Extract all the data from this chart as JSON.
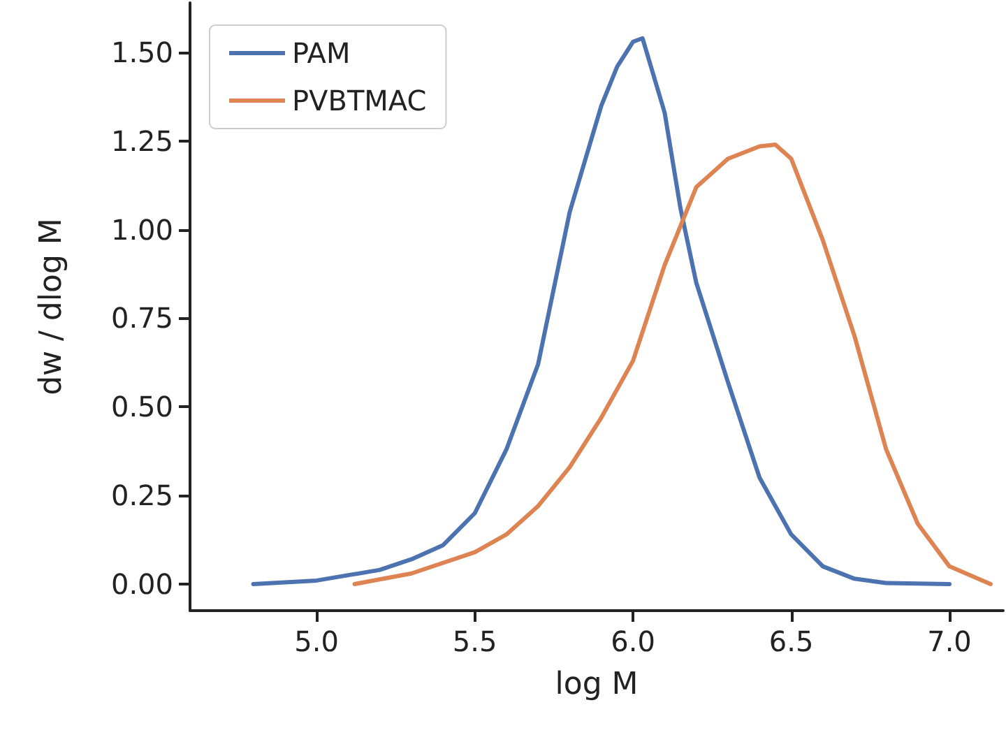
{
  "chart_data": {
    "type": "line",
    "xlabel": "log M",
    "ylabel": "dw / dlog M",
    "xlim": [
      4.6,
      7.17
    ],
    "ylim": [
      -0.075,
      1.64
    ],
    "xticks": [
      {
        "value": 5.0,
        "label": "5.0"
      },
      {
        "value": 5.5,
        "label": "5.5"
      },
      {
        "value": 6.0,
        "label": "6.0"
      },
      {
        "value": 6.5,
        "label": "6.5"
      },
      {
        "value": 7.0,
        "label": "7.0"
      }
    ],
    "yticks": [
      {
        "value": 0,
        "label": "0.00"
      },
      {
        "value": 0.25,
        "label": "0.25"
      },
      {
        "value": 0.5,
        "label": "0.50"
      },
      {
        "value": 0.75,
        "label": "0.75"
      },
      {
        "value": 1.0,
        "label": "1.00"
      },
      {
        "value": 1.25,
        "label": "1.25"
      },
      {
        "value": 1.5,
        "label": "1.50"
      }
    ],
    "grid": false,
    "legend": "top left",
    "marker": "none",
    "line_style": "solid",
    "series": [
      {
        "name": "PAM",
        "color": "#4c72b0",
        "x": [
          4.8,
          5.0,
          5.2,
          5.3,
          5.4,
          5.5,
          5.6,
          5.7,
          5.8,
          5.9,
          5.95,
          6.0,
          6.03,
          6.1,
          6.15,
          6.2,
          6.3,
          6.4,
          6.5,
          6.6,
          6.7,
          6.8,
          7.0
        ],
        "values": [
          0.0,
          0.01,
          0.04,
          0.07,
          0.11,
          0.2,
          0.38,
          0.62,
          1.05,
          1.35,
          1.46,
          1.53,
          1.54,
          1.33,
          1.06,
          0.85,
          0.57,
          0.3,
          0.14,
          0.05,
          0.015,
          0.003,
          0.0
        ]
      },
      {
        "name": "PVBTMAC",
        "color": "#dd8452",
        "x": [
          5.12,
          5.3,
          5.5,
          5.6,
          5.7,
          5.8,
          5.9,
          6.0,
          6.1,
          6.2,
          6.3,
          6.4,
          6.45,
          6.5,
          6.6,
          6.7,
          6.8,
          6.9,
          7.0,
          7.13
        ],
        "values": [
          0.0,
          0.03,
          0.09,
          0.14,
          0.22,
          0.33,
          0.47,
          0.63,
          0.9,
          1.12,
          1.2,
          1.235,
          1.24,
          1.2,
          0.97,
          0.7,
          0.38,
          0.17,
          0.05,
          0.0
        ]
      }
    ]
  }
}
